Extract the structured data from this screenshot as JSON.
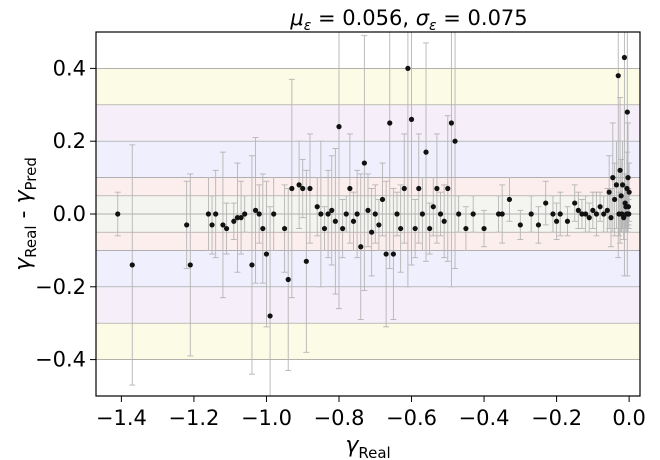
{
  "chart_data": {
    "type": "scatter",
    "title_parts": {
      "mu_symbol": "μ",
      "mu_sub": "ε",
      "mu_value": " =  0.056, ",
      "sigma_symbol": "σ",
      "sigma_sub": "ε",
      "sigma_value": " =  0.075"
    },
    "xlabel": {
      "base": "γ",
      "sub": "Real"
    },
    "ylabel": {
      "a": "γ",
      "a_sub": "Real",
      "sep": " - ",
      "b": "γ",
      "b_sub": "Pred"
    },
    "xlim": [
      -1.47,
      0.03
    ],
    "ylim": [
      -0.5,
      0.5
    ],
    "xticks": [
      -1.4,
      -1.2,
      -1.0,
      -0.8,
      -0.6,
      -0.4,
      -0.2,
      0.0
    ],
    "xtick_labels": [
      "−1.4",
      "−1.2",
      "−1.0",
      "−0.8",
      "−0.6",
      "−0.4",
      "−0.2",
      "0.0"
    ],
    "yticks": [
      -0.4,
      -0.2,
      0.0,
      0.2,
      0.4
    ],
    "ytick_labels": [
      "−0.4",
      "−0.2",
      "0.0",
      "0.2",
      "0.4"
    ],
    "bands": [
      {
        "y0": 0.3,
        "y1": 0.4,
        "color": "#fbfbe6"
      },
      {
        "y0": 0.2,
        "y1": 0.3,
        "color": "#f6eef8"
      },
      {
        "y0": 0.1,
        "y1": 0.2,
        "color": "#efeffd"
      },
      {
        "y0": 0.05,
        "y1": 0.1,
        "color": "#fdeeee"
      },
      {
        "y0": -0.05,
        "y1": 0.05,
        "color": "#f4f5f1"
      },
      {
        "y0": -0.1,
        "y1": -0.05,
        "color": "#fdeeee"
      },
      {
        "y0": -0.2,
        "y1": -0.1,
        "color": "#efeffd"
      },
      {
        "y0": -0.3,
        "y1": -0.2,
        "color": "#f6eef8"
      },
      {
        "y0": -0.4,
        "y1": -0.3,
        "color": "#fbfbe6"
      }
    ],
    "hlines": [
      -0.4,
      -0.3,
      -0.2,
      -0.1,
      -0.05,
      0.0,
      0.05,
      0.1,
      0.2,
      0.3,
      0.4
    ],
    "marker_color": "#111111",
    "errorbar_color": "#b5b5b5",
    "points": [
      {
        "x": -1.41,
        "y": 0.0,
        "err": 0.06
      },
      {
        "x": -1.37,
        "y": -0.14,
        "err": 0.33
      },
      {
        "x": -1.22,
        "y": -0.03,
        "err": 0.12
      },
      {
        "x": -1.21,
        "y": -0.14,
        "err": 0.25
      },
      {
        "x": -1.16,
        "y": 0.0,
        "err": 0.1
      },
      {
        "x": -1.15,
        "y": -0.03,
        "err": 0.08
      },
      {
        "x": -1.14,
        "y": 0.0,
        "err": 0.12
      },
      {
        "x": -1.12,
        "y": -0.03,
        "err": 0.2
      },
      {
        "x": -1.11,
        "y": -0.04,
        "err": 0.07
      },
      {
        "x": -1.09,
        "y": -0.02,
        "err": 0.05
      },
      {
        "x": -1.08,
        "y": -0.01,
        "err": 0.15
      },
      {
        "x": -1.07,
        "y": -0.01,
        "err": 0.1
      },
      {
        "x": -1.06,
        "y": 0.0,
        "err": 0.05
      },
      {
        "x": -1.04,
        "y": -0.14,
        "err": 0.3
      },
      {
        "x": -1.03,
        "y": 0.01,
        "err": 0.2
      },
      {
        "x": -1.02,
        "y": 0.0,
        "err": 0.08
      },
      {
        "x": -1.01,
        "y": -0.04,
        "err": 0.15
      },
      {
        "x": -1.0,
        "y": -0.11,
        "err": 0.2
      },
      {
        "x": -0.99,
        "y": -0.28,
        "err": 0.3
      },
      {
        "x": -0.98,
        "y": 0.0,
        "err": 0.1
      },
      {
        "x": -0.95,
        "y": -0.04,
        "err": 0.12
      },
      {
        "x": -0.94,
        "y": -0.18,
        "err": 0.25
      },
      {
        "x": -0.93,
        "y": 0.07,
        "err": 0.3
      },
      {
        "x": -0.91,
        "y": 0.08,
        "err": 0.12
      },
      {
        "x": -0.9,
        "y": 0.07,
        "err": 0.08
      },
      {
        "x": -0.89,
        "y": -0.13,
        "err": 0.25
      },
      {
        "x": -0.88,
        "y": 0.07,
        "err": 0.15
      },
      {
        "x": -0.86,
        "y": 0.02,
        "err": 0.08
      },
      {
        "x": -0.85,
        "y": 0.0,
        "err": 0.2
      },
      {
        "x": -0.84,
        "y": -0.04,
        "err": 0.06
      },
      {
        "x": -0.83,
        "y": 0.0,
        "err": 0.12
      },
      {
        "x": -0.82,
        "y": 0.01,
        "err": 0.15
      },
      {
        "x": -0.81,
        "y": -0.02,
        "err": 0.2
      },
      {
        "x": -0.8,
        "y": 0.24,
        "err": 0.5
      },
      {
        "x": -0.79,
        "y": -0.04,
        "err": 0.08
      },
      {
        "x": -0.78,
        "y": 0.0,
        "err": 0.05
      },
      {
        "x": -0.77,
        "y": 0.07,
        "err": 0.15
      },
      {
        "x": -0.76,
        "y": -0.02,
        "err": 0.08
      },
      {
        "x": -0.75,
        "y": 0.0,
        "err": 0.12
      },
      {
        "x": -0.74,
        "y": -0.09,
        "err": 0.2
      },
      {
        "x": -0.73,
        "y": 0.14,
        "err": 0.35
      },
      {
        "x": -0.72,
        "y": 0.01,
        "err": 0.1
      },
      {
        "x": -0.71,
        "y": -0.05,
        "err": 0.12
      },
      {
        "x": -0.7,
        "y": 0.0,
        "err": 0.08
      },
      {
        "x": -0.69,
        "y": -0.03,
        "err": 0.07
      },
      {
        "x": -0.68,
        "y": 0.04,
        "err": 0.1
      },
      {
        "x": -0.67,
        "y": -0.11,
        "err": 0.2
      },
      {
        "x": -0.66,
        "y": 0.25,
        "err": 0.4
      },
      {
        "x": -0.65,
        "y": -0.11,
        "err": 0.18
      },
      {
        "x": -0.64,
        "y": 0.0,
        "err": 0.06
      },
      {
        "x": -0.63,
        "y": -0.04,
        "err": 0.12
      },
      {
        "x": -0.62,
        "y": 0.07,
        "err": 0.15
      },
      {
        "x": -0.61,
        "y": 0.4,
        "err": 0.6
      },
      {
        "x": -0.6,
        "y": 0.26,
        "err": 0.4
      },
      {
        "x": -0.59,
        "y": -0.04,
        "err": 0.08
      },
      {
        "x": -0.58,
        "y": 0.07,
        "err": 0.15
      },
      {
        "x": -0.57,
        "y": 0.0,
        "err": 0.1
      },
      {
        "x": -0.56,
        "y": 0.17,
        "err": 0.3
      },
      {
        "x": -0.55,
        "y": -0.04,
        "err": 0.07
      },
      {
        "x": -0.54,
        "y": 0.02,
        "err": 0.08
      },
      {
        "x": -0.53,
        "y": 0.07,
        "err": 0.15
      },
      {
        "x": -0.52,
        "y": 0.0,
        "err": 0.06
      },
      {
        "x": -0.51,
        "y": -0.02,
        "err": 0.1
      },
      {
        "x": -0.5,
        "y": 0.07,
        "err": 0.2
      },
      {
        "x": -0.49,
        "y": 0.25,
        "err": 0.45
      },
      {
        "x": -0.48,
        "y": 0.2,
        "err": 0.35
      },
      {
        "x": -0.47,
        "y": 0.0,
        "err": 0.05
      },
      {
        "x": -0.45,
        "y": -0.04,
        "err": 0.06
      },
      {
        "x": -0.43,
        "y": 0.0,
        "err": 0.05
      },
      {
        "x": -0.4,
        "y": -0.04,
        "err": 0.05
      },
      {
        "x": -0.36,
        "y": 0.0,
        "err": 0.05
      },
      {
        "x": -0.35,
        "y": 0.0,
        "err": 0.08
      },
      {
        "x": -0.33,
        "y": 0.04,
        "err": 0.06
      },
      {
        "x": -0.3,
        "y": -0.03,
        "err": 0.04
      },
      {
        "x": -0.27,
        "y": 0.0,
        "err": 0.05
      },
      {
        "x": -0.25,
        "y": -0.03,
        "err": 0.05
      },
      {
        "x": -0.23,
        "y": 0.03,
        "err": 0.06
      },
      {
        "x": -0.21,
        "y": 0.0,
        "err": 0.05
      },
      {
        "x": -0.2,
        "y": -0.02,
        "err": 0.05
      },
      {
        "x": -0.19,
        "y": 0.0,
        "err": 0.06
      },
      {
        "x": -0.17,
        "y": -0.02,
        "err": 0.04
      },
      {
        "x": -0.15,
        "y": 0.03,
        "err": 0.05
      },
      {
        "x": -0.14,
        "y": 0.01,
        "err": 0.05
      },
      {
        "x": -0.13,
        "y": 0.0,
        "err": 0.04
      },
      {
        "x": -0.12,
        "y": 0.0,
        "err": 0.05
      },
      {
        "x": -0.11,
        "y": -0.01,
        "err": 0.04
      },
      {
        "x": -0.1,
        "y": 0.01,
        "err": 0.05
      },
      {
        "x": -0.09,
        "y": 0.0,
        "err": 0.06
      },
      {
        "x": -0.08,
        "y": 0.02,
        "err": 0.04
      },
      {
        "x": -0.07,
        "y": 0.0,
        "err": 0.05
      },
      {
        "x": -0.06,
        "y": 0.01,
        "err": 0.06
      },
      {
        "x": -0.055,
        "y": 0.06,
        "err": 0.1
      },
      {
        "x": -0.05,
        "y": -0.01,
        "err": 0.08
      },
      {
        "x": -0.045,
        "y": 0.1,
        "err": 0.15
      },
      {
        "x": -0.04,
        "y": 0.04,
        "err": 0.1
      },
      {
        "x": -0.035,
        "y": 0.08,
        "err": 0.12
      },
      {
        "x": -0.03,
        "y": 0.38,
        "err": 0.5
      },
      {
        "x": -0.028,
        "y": 0.0,
        "err": 0.06
      },
      {
        "x": -0.025,
        "y": 0.12,
        "err": 0.2
      },
      {
        "x": -0.022,
        "y": 0.05,
        "err": 0.1
      },
      {
        "x": -0.02,
        "y": 0.0,
        "err": 0.05
      },
      {
        "x": -0.018,
        "y": 0.08,
        "err": 0.12
      },
      {
        "x": -0.015,
        "y": -0.01,
        "err": 0.06
      },
      {
        "x": -0.013,
        "y": 0.43,
        "err": 0.6
      },
      {
        "x": -0.011,
        "y": 0.03,
        "err": 0.08
      },
      {
        "x": -0.009,
        "y": 0.02,
        "err": 0.06
      },
      {
        "x": -0.007,
        "y": 0.0,
        "err": 0.05
      },
      {
        "x": -0.006,
        "y": 0.07,
        "err": 0.1
      },
      {
        "x": -0.005,
        "y": 0.28,
        "err": 0.45
      },
      {
        "x": -0.004,
        "y": 0.0,
        "err": 0.04
      },
      {
        "x": -0.003,
        "y": 0.1,
        "err": 0.15
      },
      {
        "x": -0.002,
        "y": 0.02,
        "err": 0.05
      },
      {
        "x": -0.001,
        "y": 0.0,
        "err": 0.04
      },
      {
        "x": 0.0,
        "y": 0.06,
        "err": 0.08
      }
    ]
  }
}
